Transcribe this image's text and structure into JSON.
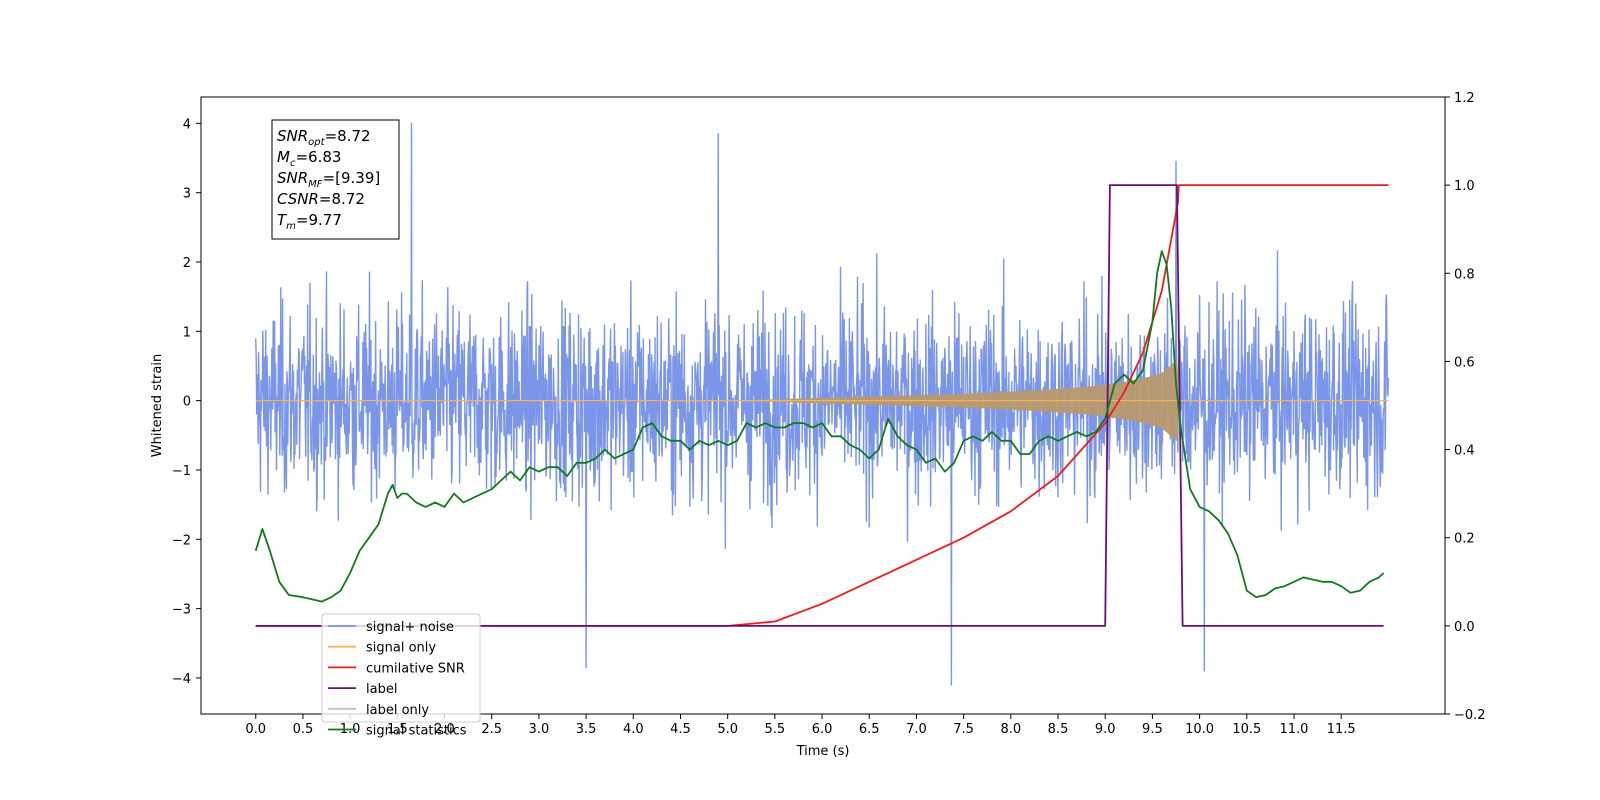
{
  "chart_data": {
    "type": "line",
    "xlabel": "Time (s)",
    "ylabel": "Whitened strain",
    "xlim": [
      -0.58,
      12.6
    ],
    "ylim": [
      -4.52,
      4.38
    ],
    "y2lim": [
      -0.2,
      1.2
    ],
    "x_ticks": [
      0.0,
      0.5,
      1.0,
      1.5,
      2.0,
      2.5,
      3.0,
      3.5,
      4.0,
      4.5,
      5.0,
      5.5,
      6.0,
      6.5,
      7.0,
      7.5,
      8.0,
      8.5,
      9.0,
      9.5,
      10.0,
      10.5,
      11.0,
      11.5
    ],
    "x_tick_labels": [
      "0.0",
      "0.5",
      "1.0",
      "1.5",
      "2.0",
      "2.5",
      "3.0",
      "3.5",
      "4.0",
      "4.5",
      "5.0",
      "5.5",
      "6.0",
      "6.5",
      "7.0",
      "7.5",
      "8.0",
      "8.5",
      "9.0",
      "9.5",
      "10.0",
      "10.5",
      "11.0",
      "11.5"
    ],
    "y_ticks": [
      -4,
      -3,
      -2,
      -1,
      0,
      1,
      2,
      3,
      4
    ],
    "y_tick_labels": [
      "−4",
      "−3",
      "−2",
      "−1",
      "0",
      "1",
      "2",
      "3",
      "4"
    ],
    "y2_ticks": [
      -0.2,
      0.0,
      0.2,
      0.4,
      0.6,
      0.8,
      1.0,
      1.2
    ],
    "y2_tick_labels": [
      "−0.2",
      "0.0",
      "0.2",
      "0.4",
      "0.6",
      "0.8",
      "1.0",
      "1.2"
    ],
    "grid": false,
    "legend_position": "bottom-left",
    "stats_box": {
      "lines": [
        {
          "base": "SNR",
          "sub": "opt",
          "value": "=8.72"
        },
        {
          "base": "M",
          "sub": "c",
          "value": "=6.83"
        },
        {
          "base": "SNR",
          "sub": "MF",
          "value": "=[9.39]"
        },
        {
          "base": "CSNR",
          "sub": "",
          "value": "=8.72"
        },
        {
          "base": "T",
          "sub": "m",
          "value": "=9.77"
        }
      ]
    },
    "series": [
      {
        "name": "signal+ noise",
        "axis": "left",
        "color": "#7b96e8",
        "x_range": [
          0.0,
          12.0
        ],
        "amplitude_range": [
          -4.1,
          4.0
        ],
        "notable_peaks": [
          [
            1.65,
            4.0
          ],
          [
            4.9,
            3.85
          ],
          [
            9.75,
            3.45
          ],
          [
            7.37,
            -4.1
          ],
          [
            10.05,
            -3.9
          ],
          [
            3.5,
            -3.85
          ]
        ]
      },
      {
        "name": "signal only",
        "axis": "left",
        "color": "#f5b25a",
        "x": [
          0.0,
          5.0,
          5.5,
          6.0,
          6.5,
          7.0,
          7.5,
          8.0,
          8.5,
          8.8,
          9.0,
          9.2,
          9.4,
          9.6,
          9.77,
          9.78,
          12.0
        ],
        "envelope": [
          0.0,
          0.0,
          0.02,
          0.04,
          0.06,
          0.08,
          0.1,
          0.13,
          0.17,
          0.2,
          0.23,
          0.27,
          0.32,
          0.4,
          0.6,
          0.0,
          0.0
        ]
      },
      {
        "name": "cumilative SNR",
        "axis": "right",
        "color": "#ee1c1c",
        "x": [
          0.0,
          4.5,
          5.0,
          5.5,
          6.0,
          6.5,
          7.0,
          7.5,
          8.0,
          8.5,
          9.0,
          9.2,
          9.4,
          9.6,
          9.77,
          9.78,
          12.0
        ],
        "values": [
          0.0,
          0.0,
          0.0,
          0.01,
          0.05,
          0.1,
          0.15,
          0.2,
          0.26,
          0.34,
          0.46,
          0.53,
          0.62,
          0.76,
          0.96,
          1.0,
          1.0
        ]
      },
      {
        "name": "label",
        "axis": "right",
        "color": "#6a0f7a",
        "x": [
          0.0,
          9.0,
          9.05,
          9.7,
          9.76,
          9.82,
          11.95
        ],
        "values": [
          0.0,
          0.0,
          1.0,
          1.0,
          1.0,
          0.0,
          0.0
        ]
      },
      {
        "name": "label only",
        "axis": "right",
        "color": "#c0c0c0",
        "x": [],
        "values": []
      },
      {
        "name": "signal statistics",
        "axis": "right",
        "color": "#117a1b",
        "x": [
          0.0,
          0.07,
          0.15,
          0.25,
          0.35,
          0.5,
          0.6,
          0.7,
          0.8,
          0.9,
          1.0,
          1.1,
          1.2,
          1.3,
          1.4,
          1.45,
          1.5,
          1.55,
          1.6,
          1.7,
          1.8,
          1.9,
          2.0,
          2.1,
          2.2,
          2.3,
          2.4,
          2.5,
          2.6,
          2.7,
          2.8,
          2.9,
          3.0,
          3.1,
          3.2,
          3.3,
          3.4,
          3.5,
          3.6,
          3.7,
          3.8,
          3.9,
          4.0,
          4.1,
          4.2,
          4.3,
          4.4,
          4.5,
          4.6,
          4.7,
          4.8,
          4.9,
          5.0,
          5.1,
          5.2,
          5.3,
          5.4,
          5.5,
          5.6,
          5.7,
          5.8,
          5.9,
          6.0,
          6.1,
          6.2,
          6.3,
          6.4,
          6.5,
          6.6,
          6.7,
          6.8,
          6.9,
          7.0,
          7.1,
          7.2,
          7.3,
          7.4,
          7.5,
          7.6,
          7.7,
          7.8,
          7.9,
          8.0,
          8.1,
          8.2,
          8.3,
          8.4,
          8.5,
          8.6,
          8.7,
          8.8,
          8.9,
          9.0,
          9.1,
          9.2,
          9.3,
          9.4,
          9.5,
          9.55,
          9.6,
          9.65,
          9.7,
          9.75,
          9.8,
          9.9,
          10.0,
          10.1,
          10.2,
          10.3,
          10.4,
          10.5,
          10.6,
          10.7,
          10.8,
          10.9,
          11.0,
          11.1,
          11.2,
          11.3,
          11.4,
          11.5,
          11.6,
          11.7,
          11.8,
          11.9,
          11.95
        ],
        "values": [
          0.17,
          0.22,
          0.17,
          0.1,
          0.07,
          0.065,
          0.06,
          0.055,
          0.065,
          0.08,
          0.12,
          0.17,
          0.2,
          0.23,
          0.3,
          0.32,
          0.29,
          0.3,
          0.3,
          0.28,
          0.27,
          0.28,
          0.27,
          0.3,
          0.28,
          0.29,
          0.3,
          0.31,
          0.33,
          0.35,
          0.33,
          0.36,
          0.35,
          0.36,
          0.36,
          0.34,
          0.37,
          0.37,
          0.38,
          0.4,
          0.38,
          0.39,
          0.4,
          0.45,
          0.46,
          0.43,
          0.42,
          0.42,
          0.4,
          0.42,
          0.41,
          0.42,
          0.41,
          0.42,
          0.46,
          0.45,
          0.46,
          0.45,
          0.45,
          0.46,
          0.46,
          0.45,
          0.46,
          0.43,
          0.43,
          0.41,
          0.4,
          0.38,
          0.4,
          0.47,
          0.43,
          0.41,
          0.4,
          0.37,
          0.38,
          0.35,
          0.37,
          0.42,
          0.43,
          0.42,
          0.44,
          0.42,
          0.42,
          0.39,
          0.39,
          0.42,
          0.43,
          0.42,
          0.43,
          0.44,
          0.43,
          0.44,
          0.47,
          0.55,
          0.57,
          0.55,
          0.58,
          0.69,
          0.8,
          0.85,
          0.82,
          0.72,
          0.55,
          0.45,
          0.31,
          0.27,
          0.26,
          0.24,
          0.21,
          0.16,
          0.08,
          0.065,
          0.07,
          0.085,
          0.09,
          0.1,
          0.11,
          0.105,
          0.1,
          0.1,
          0.09,
          0.075,
          0.08,
          0.1,
          0.11,
          0.12
        ]
      }
    ]
  }
}
